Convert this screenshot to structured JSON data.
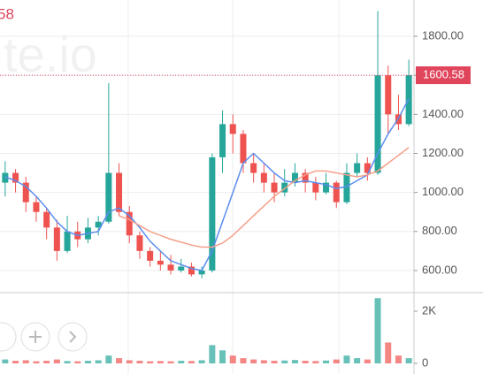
{
  "chart_data": {
    "type": "candlestick",
    "legend_fragment": "58",
    "watermark": "te.io",
    "categories": [
      null,
      null,
      null,
      null,
      null,
      null,
      null,
      null,
      null,
      null,
      null,
      null,
      null,
      null,
      null,
      null,
      null,
      null,
      null,
      null,
      null,
      null,
      null,
      null,
      null,
      null,
      null,
      null,
      null,
      null,
      null,
      null,
      null,
      null,
      null,
      null,
      null,
      null,
      null,
      null
    ],
    "open": [
      1050,
      1100,
      1050,
      950,
      900,
      820,
      700,
      800,
      760,
      820,
      850,
      1100,
      900,
      780,
      700,
      650,
      630,
      600,
      620,
      580,
      600,
      1180,
      1350,
      1300,
      1150,
      1100,
      1050,
      1000,
      1050,
      1100,
      1050,
      1000,
      1050,
      950,
      1100,
      1150,
      1100,
      1600,
      1400,
      1350
    ],
    "high": [
      1160,
      1120,
      1080,
      980,
      920,
      860,
      880,
      850,
      870,
      880,
      1560,
      1150,
      930,
      800,
      720,
      700,
      680,
      660,
      640,
      620,
      1200,
      1420,
      1400,
      1320,
      1200,
      1150,
      1100,
      1120,
      1150,
      1120,
      1080,
      1100,
      1060,
      1150,
      1200,
      1180,
      1930,
      1650,
      1500,
      1680
    ],
    "low": [
      980,
      1000,
      900,
      850,
      760,
      650,
      690,
      720,
      740,
      780,
      840,
      880,
      740,
      660,
      620,
      600,
      580,
      590,
      570,
      560,
      590,
      1100,
      1200,
      1100,
      1050,
      1000,
      950,
      980,
      1030,
      1000,
      960,
      990,
      920,
      940,
      1080,
      1060,
      1090,
      1300,
      1320,
      1340
    ],
    "close": [
      1100,
      1050,
      950,
      900,
      820,
      700,
      800,
      760,
      820,
      850,
      1100,
      900,
      780,
      700,
      650,
      630,
      600,
      620,
      580,
      600,
      1180,
      1350,
      1300,
      1150,
      1100,
      1050,
      1000,
      1050,
      1100,
      1050,
      1000,
      1050,
      950,
      1100,
      1150,
      1100,
      1600,
      1400,
      1350,
      1600.58
    ],
    "up_color": "#26a69a",
    "down_color": "#ef5350",
    "series": [
      {
        "color": "#5b8def",
        "values": [
          1080,
          1060,
          1030,
          980,
          920,
          850,
          800,
          780,
          790,
          800,
          900,
          920,
          880,
          820,
          750,
          700,
          650,
          630,
          610,
          600,
          700,
          850,
          1000,
          1150,
          1200,
          1150,
          1100,
          1060,
          1050,
          1060,
          1050,
          1040,
          1020,
          1030,
          1060,
          1090,
          1200,
          1300,
          1380,
          1480
        ]
      },
      {
        "color": "#f5a08a",
        "values": [
          null,
          null,
          null,
          null,
          null,
          null,
          null,
          null,
          null,
          null,
          null,
          880,
          860,
          830,
          800,
          780,
          760,
          745,
          730,
          720,
          720,
          740,
          780,
          830,
          880,
          930,
          980,
          1020,
          1060,
          1090,
          1110,
          1110,
          1100,
          1090,
          1080,
          1090,
          1110,
          1150,
          1190,
          1230
        ]
      }
    ],
    "last_price": {
      "value": 1600.58,
      "color": "#e0455c"
    },
    "ylim": [
      491,
      1986
    ],
    "yticks": [
      {
        "value": 600,
        "label": "600.00"
      },
      {
        "value": 800,
        "label": "800.00"
      },
      {
        "value": 1000,
        "label": "1000.00"
      },
      {
        "value": 1200,
        "label": "1200.00"
      },
      {
        "value": 1400,
        "label": "1400.00"
      },
      {
        "value": 1600,
        "label": "1600.00"
      },
      {
        "value": 1800,
        "label": "1800.00"
      }
    ],
    "volume": [
      150,
      100,
      120,
      80,
      100,
      150,
      90,
      80,
      100,
      120,
      300,
      200,
      120,
      100,
      80,
      90,
      80,
      100,
      90,
      120,
      700,
      500,
      300,
      200,
      150,
      120,
      100,
      110,
      130,
      100,
      90,
      110,
      150,
      300,
      200,
      150,
      2500,
      800,
      300,
      200
    ],
    "volume_lim": [
      0,
      2576
    ],
    "volume_ticks": [
      0,
      {
        "value": 2000,
        "label": "2K"
      }
    ],
    "grid": true
  }
}
